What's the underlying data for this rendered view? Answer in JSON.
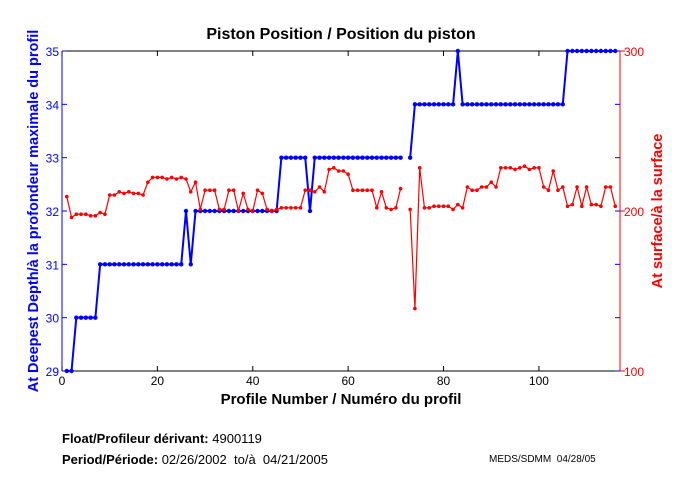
{
  "chart_data": {
    "type": "line",
    "title": "Piston Position / Position du piston",
    "xlabel": "Profile Number / Numéro du profil",
    "ylabel_left": "At Deepest Depth/à la profondeur maximale du profil",
    "ylabel_right": "At surface/à la surface",
    "xlim": [
      0,
      117
    ],
    "ylim_left": [
      29,
      35
    ],
    "ylim_right": [
      100,
      300
    ],
    "x_ticks": [
      0,
      20,
      40,
      60,
      80,
      100
    ],
    "y_ticks_left": [
      29,
      30,
      31,
      32,
      33,
      34,
      35
    ],
    "y_ticks_right": [
      100,
      200,
      300
    ],
    "grid": false,
    "colors": {
      "left": "#0000ff",
      "right": "#ff0000"
    },
    "series": [
      {
        "name": "At Deepest Depth",
        "axis": "left",
        "values": [
          29,
          29,
          30,
          30,
          30,
          30,
          30,
          31,
          31,
          31,
          31,
          31,
          31,
          31,
          31,
          31,
          31,
          31,
          31,
          31,
          31,
          31,
          31,
          31,
          31,
          32,
          31,
          32,
          32,
          32,
          32,
          32,
          32,
          32,
          32,
          32,
          32,
          32,
          32,
          32,
          32,
          32,
          32,
          32,
          32,
          33,
          33,
          33,
          33,
          33,
          33,
          32,
          33,
          33,
          33,
          33,
          33,
          33,
          33,
          33,
          33,
          33,
          33,
          33,
          33,
          33,
          33,
          33,
          33,
          33,
          33,
          null,
          33,
          34,
          34,
          34,
          34,
          34,
          34,
          34,
          34,
          34,
          35,
          34,
          34,
          34,
          34,
          34,
          34,
          34,
          34,
          34,
          34,
          34,
          34,
          34,
          34,
          34,
          34,
          34,
          34,
          34,
          34,
          34,
          34,
          35,
          35,
          35,
          35,
          35,
          35,
          35,
          35,
          35,
          35,
          35
        ]
      },
      {
        "name": "At surface",
        "axis": "right",
        "values": [
          209,
          196,
          198,
          198,
          198,
          197,
          197,
          199,
          198,
          210,
          210,
          212,
          211,
          212,
          211,
          211,
          210,
          218,
          221,
          221,
          221,
          220,
          221,
          220,
          221,
          220,
          212,
          218,
          201,
          213,
          213,
          213,
          201,
          201,
          213,
          213,
          200,
          211,
          201,
          200,
          213,
          211,
          201,
          200,
          201,
          202,
          202,
          202,
          202,
          202,
          213,
          213,
          212,
          215,
          212,
          226,
          227,
          225,
          225,
          223,
          213,
          213,
          213,
          213,
          213,
          202,
          212,
          202,
          201,
          202,
          214,
          null,
          201,
          139,
          227,
          202,
          202,
          203,
          203,
          203,
          203,
          201,
          204,
          202,
          215,
          213,
          213,
          215,
          215,
          218,
          215,
          227,
          227,
          227,
          226,
          227,
          228,
          226,
          227,
          227,
          215,
          213,
          225,
          213,
          215,
          203,
          204,
          215,
          203,
          215,
          204,
          204,
          203,
          215,
          215,
          203
        ]
      }
    ]
  },
  "footer": {
    "float_label": "Float/Profileur dérivant:",
    "float_value": "4900119",
    "period_label": "Period/Période:",
    "period_value": "02/26/2002  to/à  04/21/2005",
    "credit": "MEDS/SDMM  04/28/05"
  }
}
